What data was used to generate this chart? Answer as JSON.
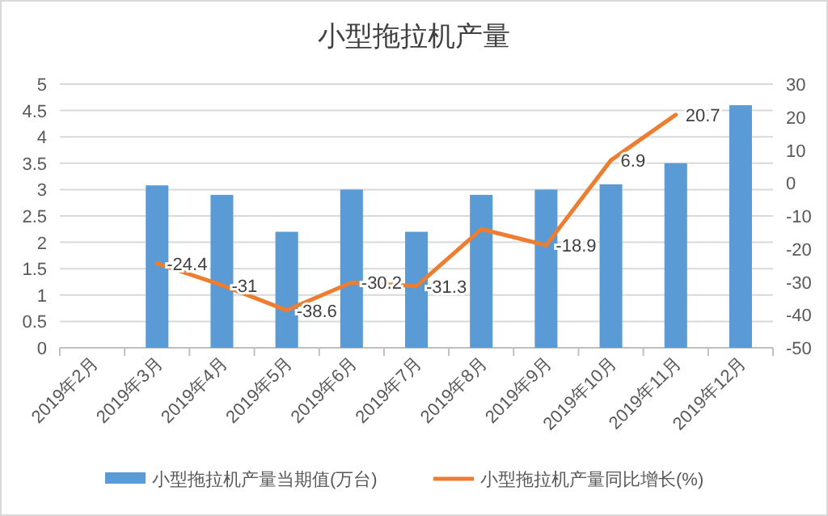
{
  "chart_data": {
    "type": "bar",
    "title": "小型拖拉机产量",
    "categories": [
      "2019年2月",
      "2019年3月",
      "2019年4月",
      "2019年5月",
      "2019年6月",
      "2019年7月",
      "2019年8月",
      "2019年9月",
      "2019年10月",
      "2019年11月",
      "2019年12月"
    ],
    "series": [
      {
        "name": "小型拖拉机产量当期值(万台)",
        "color": "#5b9bd5",
        "values": [
          null,
          3.08,
          2.9,
          2.2,
          3.0,
          2.2,
          2.9,
          3.0,
          3.1,
          3.5,
          4.6
        ]
      },
      {
        "name": "小型拖拉机产量同比增长(%)",
        "type": "line",
        "axis": "y2",
        "color": "#ed7d31",
        "values": [
          null,
          -24.4,
          -31,
          -38.6,
          -30.2,
          -31.3,
          -14,
          -18.9,
          6.9,
          20.7,
          null
        ],
        "value_labels": [
          null,
          "-24.4",
          "-31",
          "-38.6",
          "-30.2",
          "-31.3",
          null,
          "-18.9",
          "6.9",
          "20.7",
          null
        ]
      }
    ],
    "ylim": [
      0,
      5
    ],
    "yticks": [
      0,
      0.5,
      1,
      1.5,
      2,
      2.5,
      3,
      3.5,
      4,
      4.5,
      5
    ],
    "y2lim": [
      -50,
      30
    ],
    "y2ticks": [
      -50,
      -40,
      -30,
      -20,
      -10,
      0,
      10,
      20,
      30
    ],
    "grid": "y",
    "legend": "bottom"
  }
}
